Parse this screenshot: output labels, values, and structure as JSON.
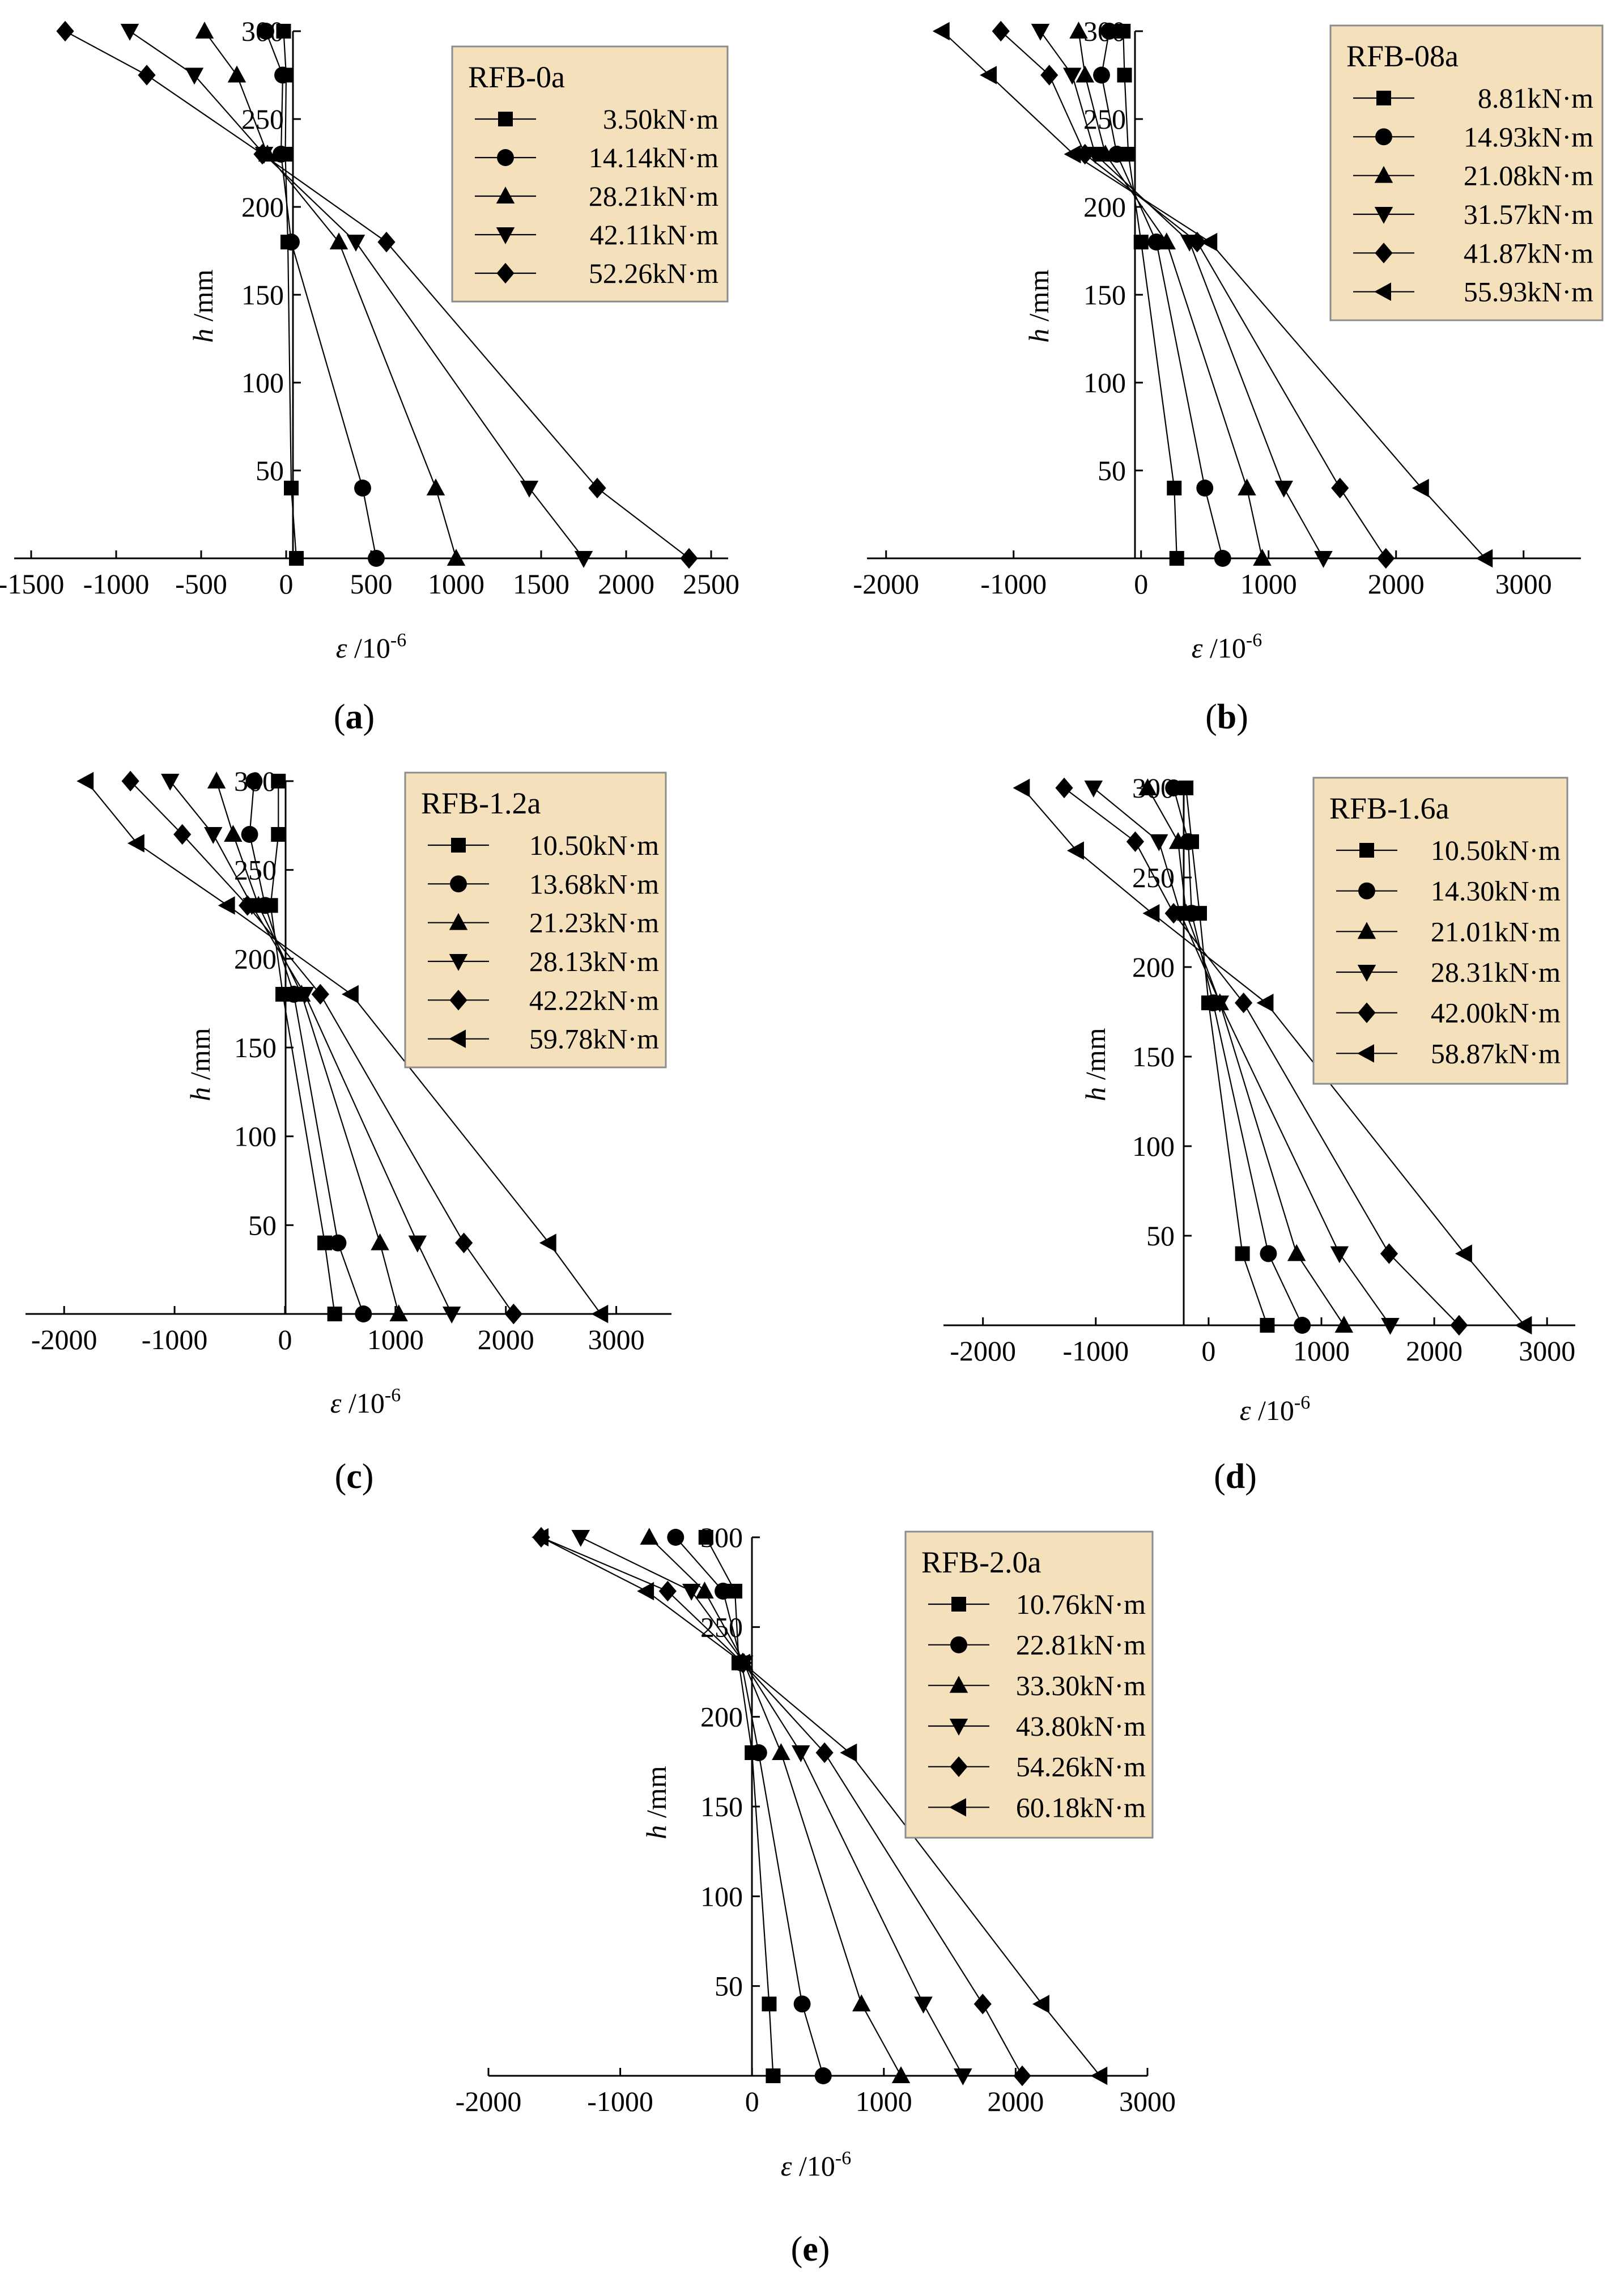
{
  "chart_data": [
    {
      "type": "line",
      "panel_label": "a",
      "legend_title": "RFB-0a",
      "xlabel": "ε /10-6",
      "ylabel": "h /mm",
      "xlim": [
        -1600,
        2600
      ],
      "ylim": [
        0,
        300
      ],
      "xticks": [
        -1500,
        -1000,
        -500,
        0,
        500,
        1000,
        1500,
        2000,
        2500
      ],
      "xtick_labels": [
        "-1500",
        "-1000",
        "-500",
        "0",
        "500",
        "1000",
        "1500",
        "2000",
        "2500"
      ],
      "yticks": [
        50,
        100,
        150,
        200,
        250,
        300
      ],
      "series": [
        {
          "name": "3.50kN·m",
          "marker": "square",
          "points": [
            [
              -15,
              300
            ],
            [
              0,
              275
            ],
            [
              -5,
              230
            ],
            [
              10,
              180
            ],
            [
              30,
              40
            ],
            [
              60,
              0
            ]
          ]
        },
        {
          "name": "14.14kN·m",
          "marker": "circle",
          "points": [
            [
              -120,
              300
            ],
            [
              -20,
              275
            ],
            [
              -30,
              230
            ],
            [
              30,
              180
            ],
            [
              450,
              40
            ],
            [
              530,
              0
            ]
          ]
        },
        {
          "name": "28.21kN·m",
          "marker": "triangle-up",
          "points": [
            [
              -480,
              300
            ],
            [
              -290,
              275
            ],
            [
              -110,
              230
            ],
            [
              310,
              180
            ],
            [
              880,
              40
            ],
            [
              1000,
              0
            ]
          ]
        },
        {
          "name": "42.11kN·m",
          "marker": "triangle-down",
          "points": [
            [
              -920,
              300
            ],
            [
              -540,
              275
            ],
            [
              -130,
              230
            ],
            [
              410,
              180
            ],
            [
              1430,
              40
            ],
            [
              1750,
              0
            ]
          ]
        },
        {
          "name": "52.26kN·m",
          "marker": "diamond",
          "points": [
            [
              -1300,
              300
            ],
            [
              -820,
              275
            ],
            [
              -140,
              230
            ],
            [
              590,
              180
            ],
            [
              1830,
              40
            ],
            [
              2370,
              0
            ]
          ]
        }
      ]
    },
    {
      "type": "line",
      "panel_label": "b",
      "legend_title": "RFB-08a",
      "xlabel": "ε /10-6",
      "ylabel": "h /mm",
      "xlim": [
        -2150,
        3450
      ],
      "ylim": [
        0,
        300
      ],
      "xticks": [
        -2000,
        -1000,
        0,
        1000,
        2000,
        3000
      ],
      "xtick_labels": [
        "-2000",
        "-1000",
        "0",
        "1000",
        "2000",
        "3000"
      ],
      "yticks": [
        50,
        100,
        150,
        200,
        250,
        300
      ],
      "series": [
        {
          "name": "8.81kN·m",
          "marker": "square",
          "points": [
            [
              -140,
              300
            ],
            [
              -130,
              275
            ],
            [
              -100,
              230
            ],
            [
              0,
              180
            ],
            [
              260,
              40
            ],
            [
              280,
              0
            ]
          ]
        },
        {
          "name": "14.93kN·m",
          "marker": "circle",
          "points": [
            [
              -250,
              300
            ],
            [
              -310,
              275
            ],
            [
              -190,
              230
            ],
            [
              120,
              180
            ],
            [
              500,
              40
            ],
            [
              640,
              0
            ]
          ]
        },
        {
          "name": "21.08kN·m",
          "marker": "triangle-up",
          "points": [
            [
              -490,
              300
            ],
            [
              -440,
              275
            ],
            [
              -280,
              230
            ],
            [
              200,
              180
            ],
            [
              830,
              40
            ],
            [
              950,
              0
            ]
          ]
        },
        {
          "name": "31.57kN·m",
          "marker": "triangle-down",
          "points": [
            [
              -790,
              300
            ],
            [
              -540,
              275
            ],
            [
              -360,
              230
            ],
            [
              380,
              180
            ],
            [
              1120,
              40
            ],
            [
              1430,
              0
            ]
          ]
        },
        {
          "name": "41.87kN·m",
          "marker": "diamond",
          "points": [
            [
              -1100,
              300
            ],
            [
              -720,
              275
            ],
            [
              -440,
              230
            ],
            [
              440,
              180
            ],
            [
              1560,
              40
            ],
            [
              1920,
              0
            ]
          ]
        },
        {
          "name": "55.93kN·m",
          "marker": "triangle-left",
          "points": [
            [
              -1560,
              300
            ],
            [
              -1190,
              275
            ],
            [
              -530,
              230
            ],
            [
              540,
              180
            ],
            [
              2200,
              40
            ],
            [
              2700,
              0
            ]
          ]
        }
      ]
    },
    {
      "type": "line",
      "panel_label": "c",
      "legend_title": "RFB-1.2a",
      "xlabel": "ε /10-6",
      "ylabel": "h /mm",
      "xlim": [
        -2350,
        3500
      ],
      "ylim": [
        0,
        300
      ],
      "xticks": [
        -2000,
        -1000,
        0,
        1000,
        2000,
        3000
      ],
      "xtick_labels": [
        "-2000",
        "-1000",
        "0",
        "1000",
        "2000",
        "3000"
      ],
      "yticks": [
        50,
        100,
        150,
        200,
        250,
        300
      ],
      "series": [
        {
          "name": "10.50kN·m",
          "marker": "square",
          "points": [
            [
              -60,
              300
            ],
            [
              -60,
              270
            ],
            [
              -130,
              230
            ],
            [
              -20,
              180
            ],
            [
              360,
              40
            ],
            [
              450,
              0
            ]
          ]
        },
        {
          "name": "13.68kN·m",
          "marker": "circle",
          "points": [
            [
              -280,
              300
            ],
            [
              -320,
              270
            ],
            [
              -180,
              230
            ],
            [
              80,
              180
            ],
            [
              480,
              40
            ],
            [
              710,
              0
            ]
          ]
        },
        {
          "name": "21.23kN·m",
          "marker": "triangle-up",
          "points": [
            [
              -620,
              300
            ],
            [
              -470,
              270
            ],
            [
              -240,
              230
            ],
            [
              150,
              180
            ],
            [
              860,
              40
            ],
            [
              1030,
              0
            ]
          ]
        },
        {
          "name": "28.13kN·m",
          "marker": "triangle-down",
          "points": [
            [
              -1040,
              300
            ],
            [
              -650,
              270
            ],
            [
              -300,
              230
            ],
            [
              180,
              180
            ],
            [
              1200,
              40
            ],
            [
              1510,
              0
            ]
          ]
        },
        {
          "name": "42.22kN·m",
          "marker": "diamond",
          "points": [
            [
              -1400,
              300
            ],
            [
              -930,
              270
            ],
            [
              -340,
              230
            ],
            [
              320,
              180
            ],
            [
              1620,
              40
            ],
            [
              2070,
              0
            ]
          ]
        },
        {
          "name": "59.78kN·m",
          "marker": "triangle-left",
          "points": [
            [
              -1800,
              300
            ],
            [
              -1340,
              265
            ],
            [
              -520,
              230
            ],
            [
              600,
              180
            ],
            [
              2390,
              40
            ],
            [
              2860,
              0
            ]
          ]
        }
      ]
    },
    {
      "type": "line",
      "panel_label": "d",
      "legend_title": "RFB-1.6a",
      "xlabel": "ε /10-6",
      "ylabel": "h /mm",
      "xlim": [
        -2350,
        3250
      ],
      "ylim": [
        0,
        300
      ],
      "xticks": [
        -2000,
        -1000,
        0,
        1000,
        2000,
        3000
      ],
      "xtick_labels": [
        "-2000",
        "-1000",
        "0",
        "1000",
        "2000",
        "3000"
      ],
      "yticks": [
        50,
        100,
        150,
        200,
        250,
        300
      ],
      "series": [
        {
          "name": "10.50kN·m",
          "marker": "square",
          "points": [
            [
              -200,
              300
            ],
            [
              -150,
              270
            ],
            [
              -80,
              230
            ],
            [
              0,
              180
            ],
            [
              300,
              40
            ],
            [
              520,
              0
            ]
          ]
        },
        {
          "name": "14.30kN·m",
          "marker": "circle",
          "points": [
            [
              -310,
              300
            ],
            [
              -180,
              270
            ],
            [
              -150,
              230
            ],
            [
              40,
              180
            ],
            [
              530,
              40
            ],
            [
              830,
              0
            ]
          ]
        },
        {
          "name": "21.01kN·m",
          "marker": "triangle-up",
          "points": [
            [
              -540,
              300
            ],
            [
              -270,
              270
            ],
            [
              -200,
              230
            ],
            [
              100,
              180
            ],
            [
              780,
              40
            ],
            [
              1200,
              0
            ]
          ]
        },
        {
          "name": "28.31kN·m",
          "marker": "triangle-down",
          "points": [
            [
              -1020,
              300
            ],
            [
              -440,
              270
            ],
            [
              -250,
              230
            ],
            [
              100,
              180
            ],
            [
              1160,
              40
            ],
            [
              1610,
              0
            ]
          ]
        },
        {
          "name": "42.00kN·m",
          "marker": "diamond",
          "points": [
            [
              -1280,
              300
            ],
            [
              -650,
              270
            ],
            [
              -310,
              230
            ],
            [
              310,
              180
            ],
            [
              1600,
              40
            ],
            [
              2220,
              0
            ]
          ]
        },
        {
          "name": "58.87kN·m",
          "marker": "triangle-left",
          "points": [
            [
              -1650,
              300
            ],
            [
              -1170,
              265
            ],
            [
              -500,
              230
            ],
            [
              510,
              180
            ],
            [
              2270,
              40
            ],
            [
              2800,
              0
            ]
          ]
        }
      ]
    },
    {
      "type": "line",
      "panel_label": "e",
      "legend_title": "RFB-2.0a",
      "xlabel": "ε /10-6",
      "ylabel": "h /mm",
      "xlim": [
        -2000,
        3000
      ],
      "ylim": [
        0,
        300
      ],
      "xticks": [
        -2000,
        -1000,
        0,
        1000,
        2000,
        3000
      ],
      "xtick_labels": [
        "-2000",
        "-1000",
        "0",
        "1000",
        "2000",
        "3000"
      ],
      "yticks": [
        50,
        100,
        150,
        200,
        250,
        300
      ],
      "series": [
        {
          "name": "10.76kN·m",
          "marker": "square",
          "points": [
            [
              -350,
              300
            ],
            [
              -130,
              270
            ],
            [
              -100,
              230
            ],
            [
              0,
              180
            ],
            [
              130,
              40
            ],
            [
              160,
              0
            ]
          ]
        },
        {
          "name": "22.81kN·m",
          "marker": "circle",
          "points": [
            [
              -580,
              300
            ],
            [
              -220,
              270
            ],
            [
              -80,
              230
            ],
            [
              50,
              180
            ],
            [
              380,
              40
            ],
            [
              540,
              0
            ]
          ]
        },
        {
          "name": "33.30kN·m",
          "marker": "triangle-up",
          "points": [
            [
              -780,
              300
            ],
            [
              -360,
              270
            ],
            [
              -60,
              230
            ],
            [
              220,
              180
            ],
            [
              830,
              40
            ],
            [
              1130,
              0
            ]
          ]
        },
        {
          "name": "43.80kN·m",
          "marker": "triangle-down",
          "points": [
            [
              -1300,
              300
            ],
            [
              -460,
              270
            ],
            [
              -60,
              230
            ],
            [
              370,
              180
            ],
            [
              1300,
              40
            ],
            [
              1600,
              0
            ]
          ]
        },
        {
          "name": "54.26kN·m",
          "marker": "diamond",
          "points": [
            [
              -1600,
              300
            ],
            [
              -640,
              270
            ],
            [
              -70,
              230
            ],
            [
              550,
              180
            ],
            [
              1750,
              40
            ],
            [
              2050,
              0
            ]
          ]
        },
        {
          "name": "60.18kN·m",
          "marker": "triangle-left",
          "points": [
            [
              -1600,
              300
            ],
            [
              -800,
              270
            ],
            [
              -70,
              230
            ],
            [
              740,
              180
            ],
            [
              2200,
              40
            ],
            [
              2640,
              0
            ]
          ]
        }
      ]
    }
  ],
  "style": {
    "legend_fill": "#f5e0bc",
    "legend_stroke": "#8c8c8c",
    "line_color": "#000000"
  }
}
